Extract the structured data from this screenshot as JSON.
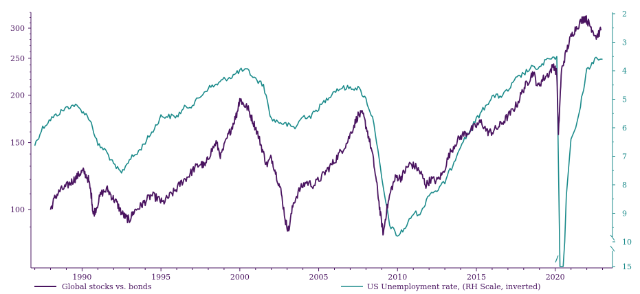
{
  "chart_data": {
    "type": "line",
    "title": "",
    "xlabel": "",
    "ylabel_left": "",
    "ylabel_right": "",
    "x_axis": {
      "range": [
        1986.8,
        2023.5
      ],
      "ticks": [
        1990,
        1995,
        2000,
        2005,
        2010,
        2015,
        2020
      ]
    },
    "y_left": {
      "scale": "log",
      "range": [
        80,
        340
      ],
      "ticks": [
        100,
        150,
        200,
        250,
        300
      ]
    },
    "y_right": {
      "scale": "linear-broken-inverted",
      "range": [
        2,
        15
      ],
      "ticks": [
        2,
        3,
        4,
        5,
        6,
        7,
        8,
        9,
        10,
        15
      ],
      "break_between": [
        10,
        15
      ]
    },
    "grid": false,
    "legend": "bottom",
    "series": [
      {
        "name": "Global stocks vs. bonds",
        "axis": "left",
        "color": "#4a1460",
        "x": [
          1988.0,
          1988.3,
          1988.6,
          1989.0,
          1989.3,
          1989.6,
          1989.9,
          1990.1,
          1990.4,
          1990.6,
          1990.7,
          1990.9,
          1991.2,
          1991.6,
          1991.9,
          1992.2,
          1992.5,
          1992.8,
          1993.0,
          1993.3,
          1993.7,
          1994.0,
          1994.4,
          1994.8,
          1995.1,
          1995.5,
          1995.9,
          1996.3,
          1996.7,
          1997.1,
          1997.5,
          1997.8,
          1998.1,
          1998.5,
          1998.8,
          1999.2,
          1999.5,
          1999.8,
          2000.0,
          2000.2,
          2000.5,
          2000.8,
          2001.1,
          2001.4,
          2001.7,
          2002.0,
          2002.3,
          2002.6,
          2002.9,
          2003.1,
          2003.4,
          2003.8,
          2004.2,
          2004.7,
          2005.2,
          2005.6,
          2006.0,
          2006.4,
          2006.8,
          2007.2,
          2007.5,
          2007.8,
          2008.1,
          2008.4,
          2008.7,
          2008.9,
          2009.1,
          2009.3,
          2009.6,
          2009.9,
          2010.2,
          2010.5,
          2010.8,
          2011.2,
          2011.5,
          2011.8,
          2012.1,
          2012.5,
          2012.9,
          2013.3,
          2013.7,
          2014.1,
          2014.5,
          2014.9,
          2015.3,
          2015.7,
          2016.0,
          2016.4,
          2016.8,
          2017.2,
          2017.6,
          2018.0,
          2018.3,
          2018.6,
          2018.9,
          2019.2,
          2019.6,
          2019.9,
          2020.1,
          2020.2,
          2020.4,
          2020.7,
          2021.0,
          2021.3,
          2021.7,
          2021.9,
          2022.1,
          2022.3,
          2022.6,
          2022.9
        ],
        "values": [
          100,
          108,
          112,
          115,
          118,
          121,
          125,
          126,
          120,
          108,
          97,
          101,
          110,
          113,
          108,
          104,
          98,
          95,
          94,
          99,
          102,
          105,
          109,
          107,
          104,
          108,
          112,
          118,
          122,
          128,
          132,
          130,
          140,
          150,
          138,
          154,
          165,
          178,
          196,
          190,
          185,
          172,
          160,
          145,
          131,
          137,
          124,
          112,
          93,
          88,
          104,
          113,
          118,
          116,
          122,
          128,
          134,
          142,
          150,
          165,
          177,
          178,
          160,
          140,
          115,
          98,
          86,
          99,
          113,
          122,
          121,
          127,
          132,
          129,
          124,
          116,
          120,
          119,
          125,
          140,
          150,
          157,
          160,
          165,
          170,
          160,
          160,
          165,
          172,
          180,
          190,
          208,
          218,
          230,
          210,
          220,
          228,
          240,
          228,
          155,
          232,
          260,
          285,
          300,
          315,
          320,
          310,
          300,
          285,
          296
        ]
      },
      {
        "name": "US Unemployment rate, (RH Scale, inverted)",
        "axis": "right",
        "color": "#1a8a8a",
        "x": [
          1987.0,
          1987.5,
          1988.0,
          1988.5,
          1989.0,
          1989.5,
          1990.0,
          1990.5,
          1991.0,
          1991.5,
          1992.0,
          1992.5,
          1993.0,
          1993.5,
          1994.0,
          1994.5,
          1995.0,
          1995.5,
          1996.0,
          1996.5,
          1997.0,
          1997.5,
          1998.0,
          1998.5,
          1999.0,
          1999.5,
          2000.0,
          2000.5,
          2001.0,
          2001.5,
          2002.0,
          2002.5,
          2003.0,
          2003.5,
          2004.0,
          2004.5,
          2005.0,
          2005.5,
          2006.0,
          2006.5,
          2007.0,
          2007.5,
          2008.0,
          2008.5,
          2009.0,
          2009.5,
          2010.0,
          2010.5,
          2011.0,
          2011.5,
          2012.0,
          2012.5,
          2013.0,
          2013.5,
          2014.0,
          2014.5,
          2015.0,
          2015.5,
          2016.0,
          2016.5,
          2017.0,
          2017.5,
          2018.0,
          2018.5,
          2019.0,
          2019.5,
          2020.0,
          2020.1,
          2020.3,
          2020.35,
          2020.5,
          2020.6,
          2020.7,
          2021.0,
          2021.3,
          2021.6,
          2022.0,
          2022.5,
          2023.0
        ],
        "values": [
          6.6,
          6.0,
          5.7,
          5.5,
          5.3,
          5.2,
          5.4,
          5.7,
          6.6,
          6.8,
          7.3,
          7.6,
          7.1,
          6.9,
          6.5,
          6.1,
          5.6,
          5.6,
          5.6,
          5.3,
          5.2,
          4.9,
          4.6,
          4.5,
          4.3,
          4.2,
          4.0,
          4.0,
          4.3,
          4.5,
          5.7,
          5.8,
          5.9,
          6.0,
          5.6,
          5.6,
          5.3,
          5.0,
          4.7,
          4.6,
          4.6,
          4.6,
          5.0,
          5.8,
          7.8,
          9.4,
          9.8,
          9.5,
          9.0,
          9.0,
          8.3,
          8.2,
          7.9,
          7.3,
          6.6,
          6.2,
          5.7,
          5.3,
          4.9,
          4.9,
          4.7,
          4.3,
          4.1,
          3.9,
          3.9,
          3.6,
          3.6,
          3.5,
          15,
          15,
          15,
          10,
          8.4,
          6.4,
          6.0,
          5.2,
          4.0,
          3.6,
          3.6
        ]
      }
    ]
  }
}
